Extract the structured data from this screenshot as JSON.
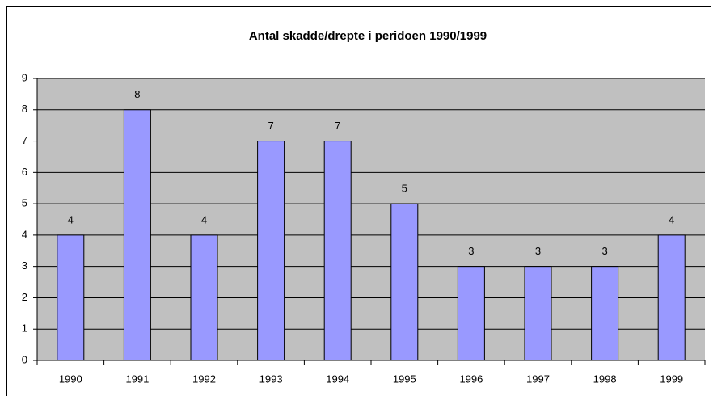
{
  "chart_data": {
    "type": "bar",
    "title": "Antal skadde/drepte i peridoen 1990/1999",
    "categories": [
      "1990",
      "1991",
      "1992",
      "1993",
      "1994",
      "1995",
      "1996",
      "1997",
      "1998",
      "1999"
    ],
    "values": [
      4,
      8,
      4,
      7,
      7,
      5,
      3,
      3,
      3,
      4
    ],
    "color": "#9999ff",
    "ylim": [
      0,
      9
    ],
    "yticks": [
      0,
      1,
      2,
      3,
      4,
      5,
      6,
      7,
      8,
      9
    ],
    "grid": true,
    "plot_background": "#c0c0c0"
  }
}
